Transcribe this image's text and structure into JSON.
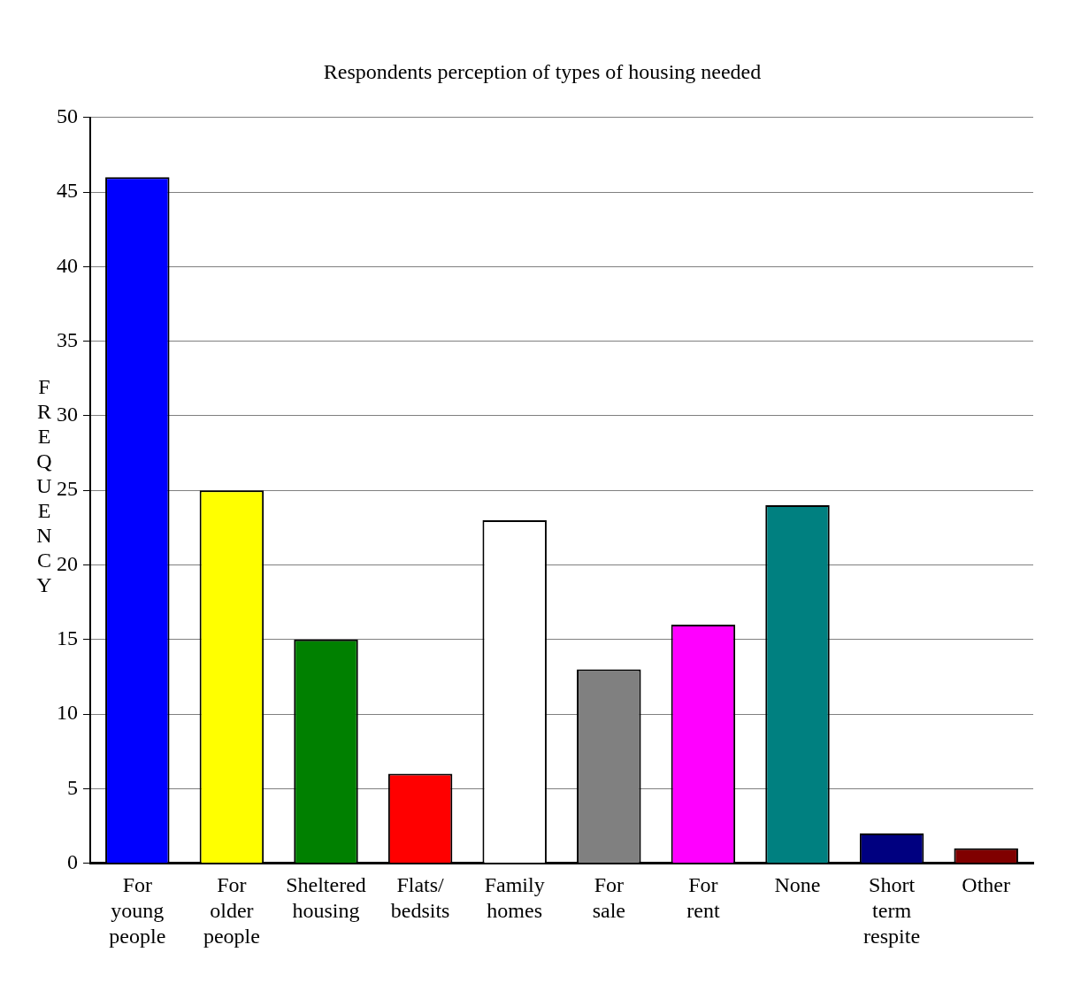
{
  "chart_data": {
    "type": "bar",
    "title": "Respondents perception of types of housing needed",
    "ylabel": "FREQUENCY",
    "categories": [
      "For young people",
      "For older people",
      "Sheltered housing",
      "Flats/ bedsits",
      "Family homes",
      "For sale",
      "For rent",
      "None",
      "Short term respite",
      "Other"
    ],
    "values": [
      46,
      25,
      15,
      6,
      23,
      13,
      16,
      24,
      2,
      1
    ],
    "colors": [
      "#0000ff",
      "#ffff00",
      "#008000",
      "#ff0000",
      "#ffffff",
      "#808080",
      "#ff00ff",
      "#008080",
      "#000080",
      "#800000"
    ],
    "ylim": [
      0,
      50
    ],
    "yticks": [
      0,
      5,
      10,
      15,
      20,
      25,
      30,
      35,
      40,
      45,
      50
    ],
    "grid": "y",
    "legend": false
  }
}
